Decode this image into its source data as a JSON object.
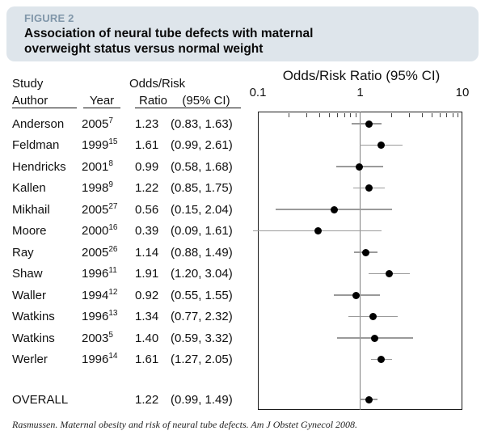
{
  "figure_header": {
    "label": "FIGURE 2",
    "title_line_1": "Association of neural tube defects with maternal",
    "title_line_2": "overweight status versus normal weight",
    "bg_color": "#dee5eb",
    "label_color": "#8096a9"
  },
  "table_header": {
    "study": "Study",
    "author": "Author",
    "year": "Year",
    "odds_risk": "Odds/Risk",
    "ratio": "Ratio",
    "ci": "(95% CI)"
  },
  "chart_data": {
    "type": "forest",
    "title": "Odds/Risk Ratio (95% CI)",
    "x_axis": {
      "scale": "log",
      "min": 0.1,
      "max": 10,
      "tick_values": [
        0.1,
        1,
        10
      ],
      "tick_labels": [
        "0.1",
        "1",
        "10"
      ],
      "minor_ticks": [
        0.2,
        0.3,
        0.4,
        0.5,
        0.6,
        0.7,
        0.8,
        0.9,
        2,
        3,
        4,
        5,
        6,
        7,
        8,
        9
      ],
      "reference_line": 1
    },
    "studies": [
      {
        "author": "Anderson",
        "year": "2005",
        "ref": "7",
        "estimate": 1.23,
        "ci_low": 0.83,
        "ci_high": 1.63
      },
      {
        "author": "Feldman",
        "year": "1999",
        "ref": "15",
        "estimate": 1.61,
        "ci_low": 0.99,
        "ci_high": 2.61
      },
      {
        "author": "Hendricks",
        "year": "2001",
        "ref": "8",
        "estimate": 0.99,
        "ci_low": 0.58,
        "ci_high": 1.68
      },
      {
        "author": "Kallen",
        "year": "1998",
        "ref": "9",
        "estimate": 1.22,
        "ci_low": 0.85,
        "ci_high": 1.75
      },
      {
        "author": "Mikhail",
        "year": "2005",
        "ref": "27",
        "estimate": 0.56,
        "ci_low": 0.15,
        "ci_high": 2.04
      },
      {
        "author": "Moore",
        "year": "2000",
        "ref": "16",
        "estimate": 0.39,
        "ci_low": 0.09,
        "ci_high": 1.61
      },
      {
        "author": "Ray",
        "year": "2005",
        "ref": "26",
        "estimate": 1.14,
        "ci_low": 0.88,
        "ci_high": 1.49
      },
      {
        "author": "Shaw",
        "year": "1996",
        "ref": "11",
        "estimate": 1.91,
        "ci_low": 1.2,
        "ci_high": 3.04
      },
      {
        "author": "Waller",
        "year": "1994",
        "ref": "12",
        "estimate": 0.92,
        "ci_low": 0.55,
        "ci_high": 1.55
      },
      {
        "author": "Watkins",
        "year": "1996",
        "ref": "13",
        "estimate": 1.34,
        "ci_low": 0.77,
        "ci_high": 2.32
      },
      {
        "author": "Watkins",
        "year": "2003",
        "ref": "5",
        "estimate": 1.4,
        "ci_low": 0.59,
        "ci_high": 3.32
      },
      {
        "author": "Werler",
        "year": "1996",
        "ref": "14",
        "estimate": 1.61,
        "ci_low": 1.27,
        "ci_high": 2.05
      }
    ],
    "overall": {
      "label": "OVERALL",
      "estimate": 1.22,
      "ci_low": 0.99,
      "ci_high": 1.49
    }
  },
  "footer": {
    "citation": "Rasmussen. Maternal obesity and risk of neural tube defects. Am J Obstet Gynecol 2008."
  }
}
